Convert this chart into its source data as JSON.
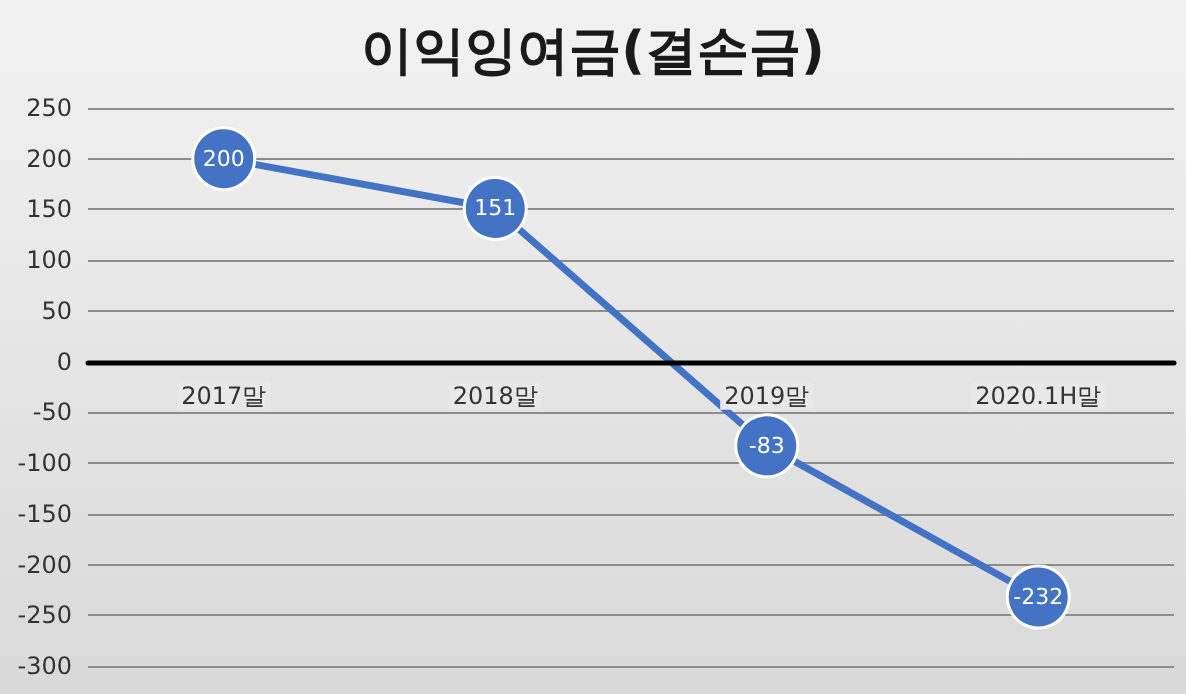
{
  "chart_data": {
    "type": "line",
    "title": "이익잉여금(결손금)",
    "categories": [
      "2017말",
      "2018말",
      "2019말",
      "2020.1H말"
    ],
    "series": [
      {
        "color": "#4472c4",
        "values": [
          200,
          151,
          -83,
          -232
        ]
      }
    ],
    "ylim": [
      -300,
      250
    ],
    "yticks": [
      -300,
      -250,
      -200,
      -150,
      -100,
      -50,
      0,
      50,
      100,
      150,
      200,
      250
    ],
    "grid": "y",
    "marker": "circle",
    "data_labels": true
  }
}
